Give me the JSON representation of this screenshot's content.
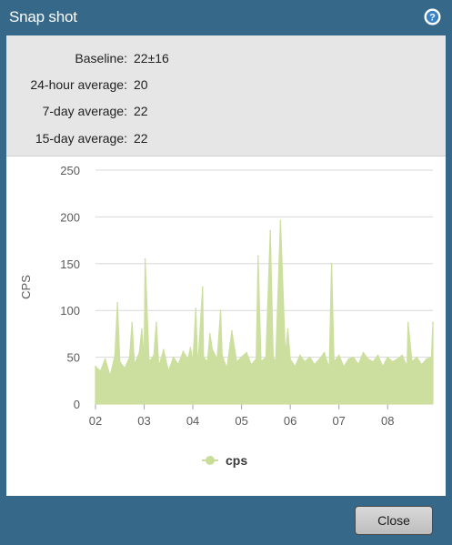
{
  "window": {
    "title": "Snap shot",
    "help_icon": "help-circle-icon"
  },
  "stats": [
    {
      "label": "Baseline:",
      "value": "22±16"
    },
    {
      "label": "24-hour average:",
      "value": "20"
    },
    {
      "label": "7-day average:",
      "value": "22"
    },
    {
      "label": "15-day average:",
      "value": "22"
    }
  ],
  "footer": {
    "close_label": "Close"
  },
  "colors": {
    "titlebar": "#366889",
    "series": "#cddf9f",
    "legend_marker": "#c9dc9a"
  },
  "chart_data": {
    "type": "area",
    "ylabel": "CPS",
    "ylim": [
      0,
      250
    ],
    "yticks": [
      0,
      50,
      100,
      150,
      200,
      250
    ],
    "xticks": [
      "02",
      "03",
      "04",
      "05",
      "06",
      "07",
      "08"
    ],
    "xlim": [
      2.0,
      8.93
    ],
    "grid": true,
    "legend_position": "bottom-center",
    "series": [
      {
        "name": "cps",
        "x": [
          2.0,
          2.1,
          2.2,
          2.3,
          2.4,
          2.45,
          2.5,
          2.6,
          2.7,
          2.75,
          2.8,
          2.9,
          2.95,
          3.0,
          3.02,
          3.1,
          3.2,
          3.25,
          3.3,
          3.4,
          3.45,
          3.5,
          3.6,
          3.7,
          3.8,
          3.9,
          3.95,
          4.0,
          4.06,
          4.1,
          4.2,
          4.22,
          4.3,
          4.35,
          4.4,
          4.5,
          4.57,
          4.6,
          4.7,
          4.8,
          4.9,
          5.0,
          5.1,
          5.2,
          5.3,
          5.34,
          5.4,
          5.5,
          5.59,
          5.65,
          5.7,
          5.8,
          5.9,
          5.95,
          6.0,
          6.1,
          6.2,
          6.3,
          6.4,
          6.5,
          6.6,
          6.7,
          6.8,
          6.85,
          6.9,
          7.0,
          7.1,
          7.2,
          7.3,
          7.4,
          7.5,
          7.6,
          7.7,
          7.8,
          7.9,
          8.0,
          8.1,
          8.2,
          8.3,
          8.4,
          8.42,
          8.5,
          8.6,
          8.7,
          8.8,
          8.9,
          8.93
        ],
        "y": [
          40,
          35,
          48,
          30,
          52,
          108,
          45,
          38,
          50,
          87,
          42,
          55,
          80,
          48,
          155,
          45,
          52,
          87,
          40,
          58,
          46,
          35,
          50,
          42,
          56,
          48,
          60,
          45,
          102,
          38,
          125,
          50,
          45,
          75,
          58,
          48,
          100,
          52,
          38,
          78,
          45,
          50,
          55,
          42,
          48,
          158,
          45,
          50,
          185,
          50,
          45,
          196,
          52,
          80,
          48,
          40,
          52,
          45,
          50,
          42,
          48,
          55,
          38,
          150,
          45,
          52,
          40,
          48,
          50,
          42,
          55,
          48,
          45,
          52,
          40,
          50,
          45,
          48,
          52,
          40,
          87,
          45,
          50,
          42,
          48,
          50,
          87
        ]
      }
    ]
  }
}
